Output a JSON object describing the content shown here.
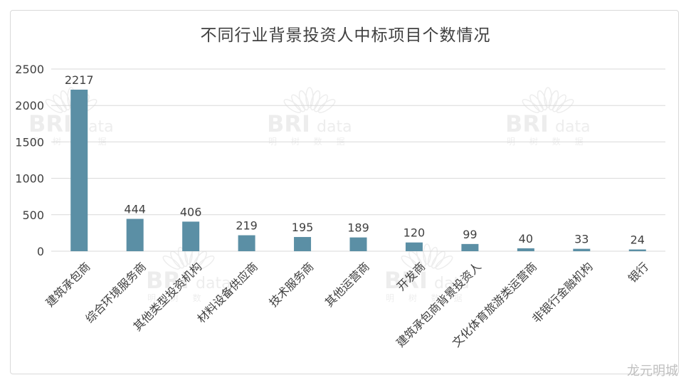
{
  "chart_data": {
    "type": "bar",
    "title": "不同行业背景投资人中标项目个数情况",
    "categories": [
      "建筑承包商",
      "综合环境服务商",
      "其他类型投资机构",
      "材料设备供应商",
      "技术服务商",
      "其他运营商",
      "开发商",
      "建筑承包商背景投资人",
      "文化体育旅游类运营商",
      "非银行金融机构",
      "银行"
    ],
    "values": [
      2217,
      444,
      406,
      219,
      195,
      189,
      120,
      99,
      40,
      33,
      24
    ],
    "data_labels": [
      "2217",
      "444",
      "406",
      "219",
      "195",
      "189",
      "120",
      "99",
      "40",
      "33",
      "24"
    ],
    "yticks": [
      "0",
      "500",
      "1000",
      "1500",
      "2000",
      "2500"
    ],
    "ylim": [
      0,
      2500
    ],
    "grid": true,
    "legend": "none",
    "bar_color": "#5b8fa5",
    "grid_color": "#d9d9d9"
  },
  "watermark": {
    "brand": "BRI",
    "suffix": "data",
    "sub": "明 树 数 据"
  },
  "credit": "龙元明城"
}
